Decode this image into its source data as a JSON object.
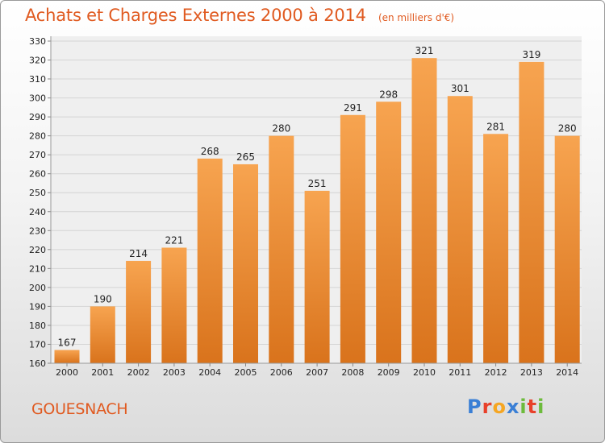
{
  "title": "Achats et Charges Externes 2000 à 2014",
  "subtitle": "(en milliers d'€)",
  "commune": "GOUESNACH",
  "brand": {
    "letters": [
      {
        "char": "P",
        "color": "#3a7fd5"
      },
      {
        "char": "r",
        "color": "#e8402a"
      },
      {
        "char": "o",
        "color": "#f5a623"
      },
      {
        "char": "x",
        "color": "#3a7fd5"
      },
      {
        "char": "i",
        "color": "#6dbb3c"
      },
      {
        "char": "t",
        "color": "#e8402a"
      },
      {
        "char": "i",
        "color": "#6dbb3c"
      }
    ]
  },
  "chart_data": {
    "type": "bar",
    "categories": [
      "2000",
      "2001",
      "2002",
      "2003",
      "2004",
      "2005",
      "2006",
      "2007",
      "2008",
      "2009",
      "2010",
      "2011",
      "2012",
      "2013",
      "2014"
    ],
    "values": [
      167,
      190,
      214,
      221,
      268,
      265,
      280,
      251,
      291,
      298,
      321,
      301,
      281,
      319,
      280
    ],
    "title": "Achats et Charges Externes 2000 à 2014",
    "xlabel": "",
    "ylabel": "",
    "ylim": [
      160,
      330
    ],
    "yticks": [
      160,
      170,
      180,
      190,
      200,
      210,
      220,
      230,
      240,
      250,
      260,
      270,
      280,
      290,
      300,
      310,
      320,
      330
    ],
    "grid": true,
    "bar_color_top": "#f7a450",
    "bar_color_bottom": "#d9731c"
  }
}
